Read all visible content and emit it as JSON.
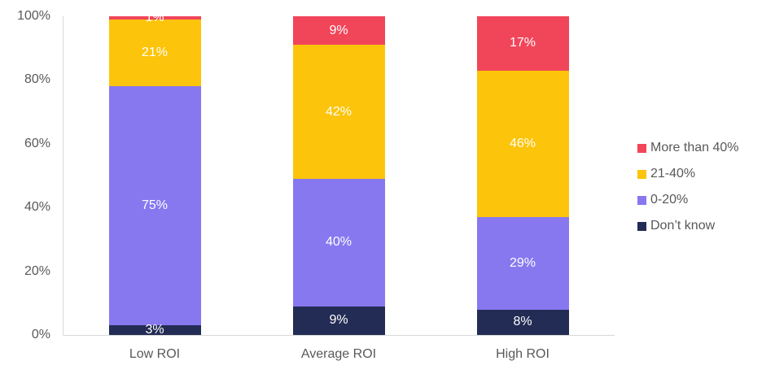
{
  "chart_data": {
    "type": "bar",
    "variant": "stacked-100",
    "title": "",
    "xlabel": "",
    "ylabel": "",
    "categories": [
      "Low ROI",
      "Average ROI",
      "High ROI"
    ],
    "stack_order": "top-down",
    "series": [
      {
        "name": "More than 40%",
        "color": "#F1455A",
        "values": [
          1,
          9,
          17
        ]
      },
      {
        "name": "21-40%",
        "color": "#FCC40A",
        "values": [
          21,
          42,
          46
        ]
      },
      {
        "name": "0-20%",
        "color": "#8778F0",
        "values": [
          75,
          40,
          29
        ]
      },
      {
        "name": "Don’t know",
        "color": "#232C55",
        "values": [
          3,
          9,
          8
        ]
      }
    ],
    "data_label_suffix": "%",
    "data_label_color": "#FFFFFF",
    "y_ticks": [
      0,
      20,
      40,
      60,
      80,
      100
    ],
    "y_tick_suffix": "%",
    "ylim": [
      0,
      100
    ],
    "grid": false,
    "legend_position": "right",
    "axis_text_color": "#595959",
    "axis_line_color": "#D9D9D9"
  }
}
